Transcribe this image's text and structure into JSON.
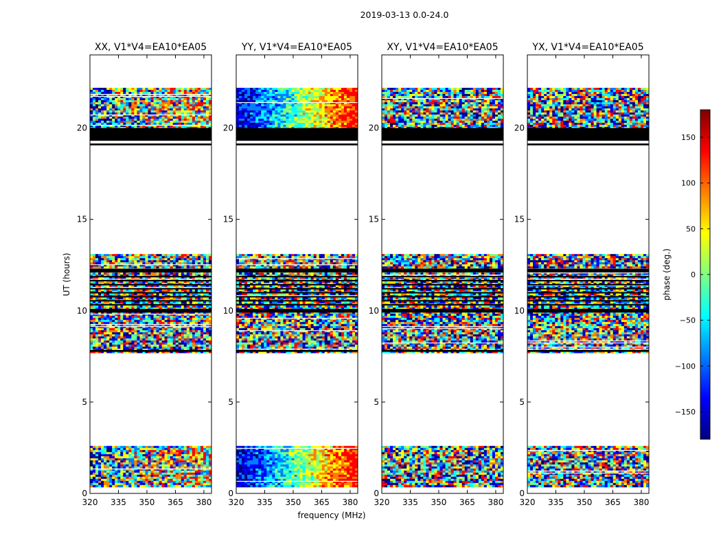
{
  "figure_title": "2019-03-13 0.0-24.0",
  "chart_data": {
    "type": "heatmap",
    "title": "2019-03-13 0.0-24.0",
    "xlabel": "frequency (MHz)",
    "ylabel": "UT (hours)",
    "xlim": [
      320,
      384
    ],
    "ylim": [
      0,
      24
    ],
    "xticks": [
      320,
      335,
      350,
      365,
      380
    ],
    "yticks": [
      0,
      5,
      10,
      15,
      20
    ],
    "colorbar": {
      "label": "phase (deg.)",
      "range": [
        -180,
        180
      ],
      "ticks": [
        150,
        100,
        50,
        0,
        -50,
        -100,
        -150
      ],
      "tick_labels": [
        "150",
        "100",
        "50",
        "0",
        "−50",
        "−100",
        "−150"
      ],
      "colormap": [
        "#00007f",
        "#0000ff",
        "#007fff",
        "#00ffff",
        "#7fff7f",
        "#ffff00",
        "#ff7f00",
        "#ff0000",
        "#7f0000"
      ]
    },
    "data_bands_hours": [
      [
        0.4,
        2.6
      ],
      [
        7.7,
        13.1
      ],
      [
        20.0,
        22.2
      ]
    ],
    "flagged_black_bands_hours": [
      [
        19.05,
        19.15
      ],
      [
        19.3,
        20.0
      ],
      [
        12.1,
        12.3
      ],
      [
        9.9,
        10.1
      ],
      [
        7.75,
        7.85
      ]
    ],
    "panels": [
      {
        "title": "XX, V1*V4=EA10*EA05",
        "phase_gradient": "weak"
      },
      {
        "title": "YY, V1*V4=EA10*EA05",
        "phase_gradient": "strong"
      },
      {
        "title": "XY, V1*V4=EA10*EA05",
        "phase_gradient": "none"
      },
      {
        "title": "YX, V1*V4=EA10*EA05",
        "phase_gradient": "none"
      }
    ]
  }
}
